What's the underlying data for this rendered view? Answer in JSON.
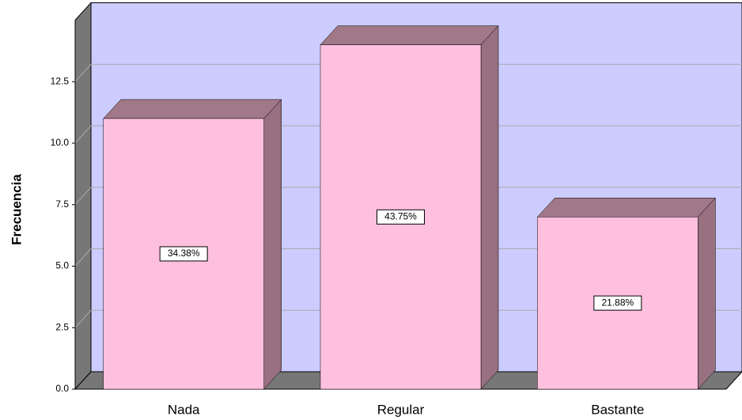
{
  "chart_data": {
    "type": "bar3d",
    "y_label": "Frecuencia",
    "categories": [
      "Nada",
      "Regular",
      "Bastante"
    ],
    "values": [
      11,
      14,
      7
    ],
    "percentages": [
      34.38,
      43.75,
      21.88
    ],
    "percentage_labels": [
      "34.38%",
      "43.75%",
      "21.88%"
    ],
    "color": "#ffc0e0",
    "wall_color": "#ccccff",
    "ylim": [
      0,
      15
    ],
    "yticks": [
      {
        "value": 0,
        "label": "0.0"
      },
      2.5,
      {
        "value": 5,
        "label": "5.0"
      },
      7.5,
      {
        "value": 10,
        "label": "10.0"
      },
      12.5
    ],
    "grid": true
  }
}
